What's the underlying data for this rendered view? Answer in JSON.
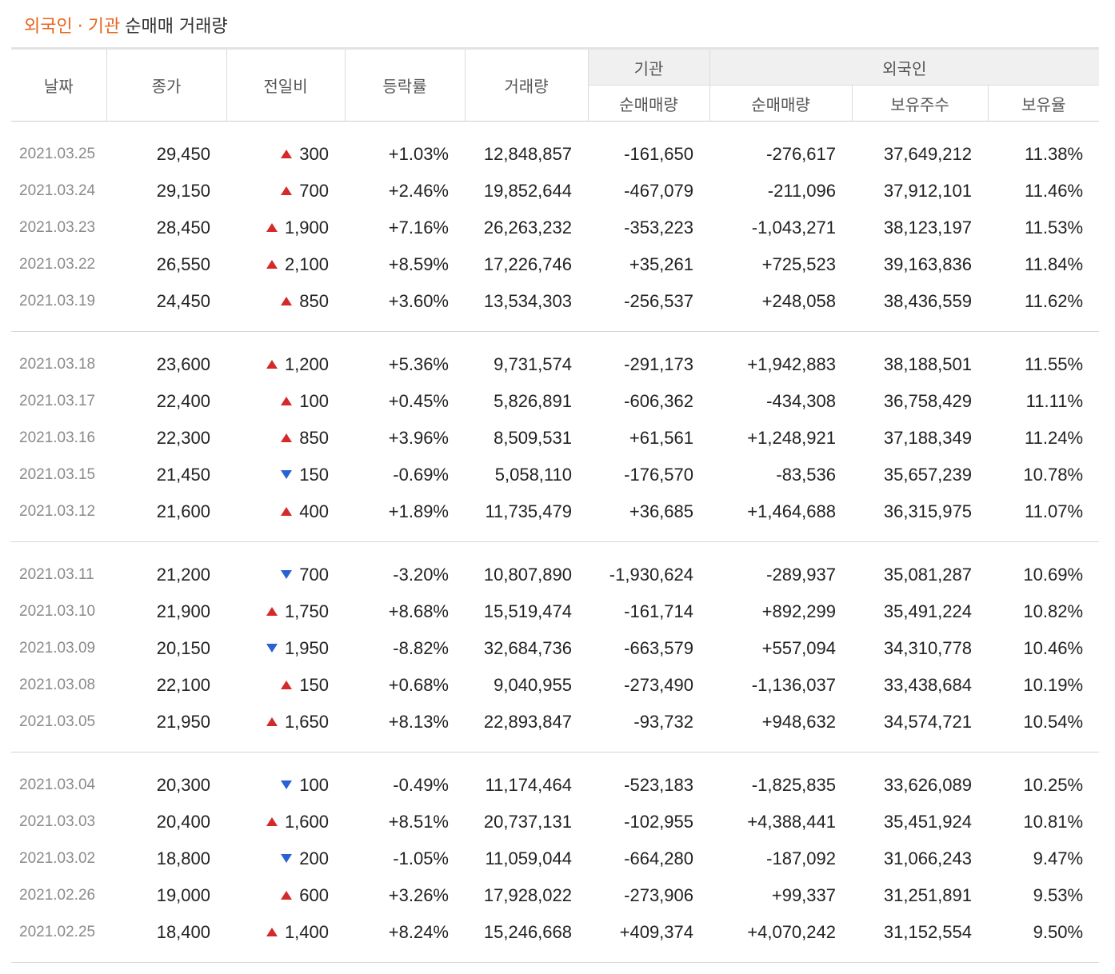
{
  "title": {
    "part1": "외국인",
    "separator": "·",
    "part2": "기관",
    "rest": "순매매 거래량"
  },
  "headers": {
    "date": "날짜",
    "close": "종가",
    "change": "전일비",
    "rate": "등락률",
    "volume": "거래량",
    "inst_group": "기관",
    "foreign_group": "외국인",
    "inst_net": "순매매량",
    "foreign_net": "순매매량",
    "foreign_holdings": "보유주수",
    "foreign_ratio": "보유율"
  },
  "colors": {
    "up": "#d42a2a",
    "down": "#2a62d4",
    "accent": "#e8651e"
  },
  "groups": [
    [
      {
        "date": "2021.03.25",
        "close": "29,450",
        "dir": "up",
        "change": "300",
        "rate": "+1.03%",
        "volume": "12,848,857",
        "inst": "-161,650",
        "foreign": "-276,617",
        "holdings": "37,649,212",
        "ratio": "11.38%"
      },
      {
        "date": "2021.03.24",
        "close": "29,150",
        "dir": "up",
        "change": "700",
        "rate": "+2.46%",
        "volume": "19,852,644",
        "inst": "-467,079",
        "foreign": "-211,096",
        "holdings": "37,912,101",
        "ratio": "11.46%"
      },
      {
        "date": "2021.03.23",
        "close": "28,450",
        "dir": "up",
        "change": "1,900",
        "rate": "+7.16%",
        "volume": "26,263,232",
        "inst": "-353,223",
        "foreign": "-1,043,271",
        "holdings": "38,123,197",
        "ratio": "11.53%"
      },
      {
        "date": "2021.03.22",
        "close": "26,550",
        "dir": "up",
        "change": "2,100",
        "rate": "+8.59%",
        "volume": "17,226,746",
        "inst": "+35,261",
        "foreign": "+725,523",
        "holdings": "39,163,836",
        "ratio": "11.84%"
      },
      {
        "date": "2021.03.19",
        "close": "24,450",
        "dir": "up",
        "change": "850",
        "rate": "+3.60%",
        "volume": "13,534,303",
        "inst": "-256,537",
        "foreign": "+248,058",
        "holdings": "38,436,559",
        "ratio": "11.62%"
      }
    ],
    [
      {
        "date": "2021.03.18",
        "close": "23,600",
        "dir": "up",
        "change": "1,200",
        "rate": "+5.36%",
        "volume": "9,731,574",
        "inst": "-291,173",
        "foreign": "+1,942,883",
        "holdings": "38,188,501",
        "ratio": "11.55%"
      },
      {
        "date": "2021.03.17",
        "close": "22,400",
        "dir": "up",
        "change": "100",
        "rate": "+0.45%",
        "volume": "5,826,891",
        "inst": "-606,362",
        "foreign": "-434,308",
        "holdings": "36,758,429",
        "ratio": "11.11%"
      },
      {
        "date": "2021.03.16",
        "close": "22,300",
        "dir": "up",
        "change": "850",
        "rate": "+3.96%",
        "volume": "8,509,531",
        "inst": "+61,561",
        "foreign": "+1,248,921",
        "holdings": "37,188,349",
        "ratio": "11.24%"
      },
      {
        "date": "2021.03.15",
        "close": "21,450",
        "dir": "down",
        "change": "150",
        "rate": "-0.69%",
        "volume": "5,058,110",
        "inst": "-176,570",
        "foreign": "-83,536",
        "holdings": "35,657,239",
        "ratio": "10.78%"
      },
      {
        "date": "2021.03.12",
        "close": "21,600",
        "dir": "up",
        "change": "400",
        "rate": "+1.89%",
        "volume": "11,735,479",
        "inst": "+36,685",
        "foreign": "+1,464,688",
        "holdings": "36,315,975",
        "ratio": "11.07%"
      }
    ],
    [
      {
        "date": "2021.03.11",
        "close": "21,200",
        "dir": "down",
        "change": "700",
        "rate": "-3.20%",
        "volume": "10,807,890",
        "inst": "-1,930,624",
        "foreign": "-289,937",
        "holdings": "35,081,287",
        "ratio": "10.69%"
      },
      {
        "date": "2021.03.10",
        "close": "21,900",
        "dir": "up",
        "change": "1,750",
        "rate": "+8.68%",
        "volume": "15,519,474",
        "inst": "-161,714",
        "foreign": "+892,299",
        "holdings": "35,491,224",
        "ratio": "10.82%"
      },
      {
        "date": "2021.03.09",
        "close": "20,150",
        "dir": "down",
        "change": "1,950",
        "rate": "-8.82%",
        "volume": "32,684,736",
        "inst": "-663,579",
        "foreign": "+557,094",
        "holdings": "34,310,778",
        "ratio": "10.46%"
      },
      {
        "date": "2021.03.08",
        "close": "22,100",
        "dir": "up",
        "change": "150",
        "rate": "+0.68%",
        "volume": "9,040,955",
        "inst": "-273,490",
        "foreign": "-1,136,037",
        "holdings": "33,438,684",
        "ratio": "10.19%"
      },
      {
        "date": "2021.03.05",
        "close": "21,950",
        "dir": "up",
        "change": "1,650",
        "rate": "+8.13%",
        "volume": "22,893,847",
        "inst": "-93,732",
        "foreign": "+948,632",
        "holdings": "34,574,721",
        "ratio": "10.54%"
      }
    ],
    [
      {
        "date": "2021.03.04",
        "close": "20,300",
        "dir": "down",
        "change": "100",
        "rate": "-0.49%",
        "volume": "11,174,464",
        "inst": "-523,183",
        "foreign": "-1,825,835",
        "holdings": "33,626,089",
        "ratio": "10.25%"
      },
      {
        "date": "2021.03.03",
        "close": "20,400",
        "dir": "up",
        "change": "1,600",
        "rate": "+8.51%",
        "volume": "20,737,131",
        "inst": "-102,955",
        "foreign": "+4,388,441",
        "holdings": "35,451,924",
        "ratio": "10.81%"
      },
      {
        "date": "2021.03.02",
        "close": "18,800",
        "dir": "down",
        "change": "200",
        "rate": "-1.05%",
        "volume": "11,059,044",
        "inst": "-664,280",
        "foreign": "-187,092",
        "holdings": "31,066,243",
        "ratio": "9.47%"
      },
      {
        "date": "2021.02.26",
        "close": "19,000",
        "dir": "up",
        "change": "600",
        "rate": "+3.26%",
        "volume": "17,928,022",
        "inst": "-273,906",
        "foreign": "+99,337",
        "holdings": "31,251,891",
        "ratio": "9.53%"
      },
      {
        "date": "2021.02.25",
        "close": "18,400",
        "dir": "up",
        "change": "1,400",
        "rate": "+8.24%",
        "volume": "15,246,668",
        "inst": "+409,374",
        "foreign": "+4,070,242",
        "holdings": "31,152,554",
        "ratio": "9.50%"
      }
    ]
  ]
}
